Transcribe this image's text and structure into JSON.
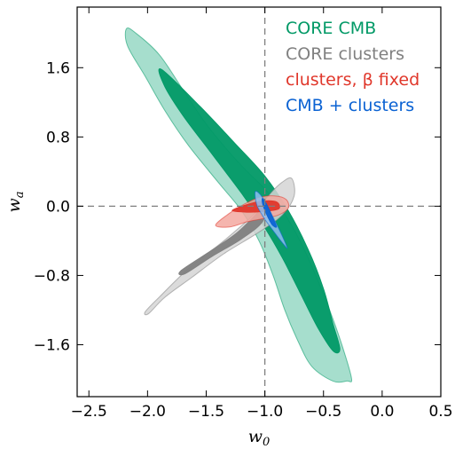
{
  "chart_data": {
    "type": "contour",
    "xlabel": "w",
    "xlabel_sub": "0",
    "ylabel": "w",
    "ylabel_sub": "a",
    "xlim": [
      -2.6,
      0.5
    ],
    "ylim": [
      -2.2,
      2.3
    ],
    "xticks": [
      -2.5,
      -2.0,
      -1.5,
      -1.0,
      -0.5,
      0.0,
      0.5
    ],
    "xtick_labels": [
      "−2.5",
      "−2.0",
      "−1.5",
      "−1.0",
      "−0.5",
      "0.0",
      "0.5"
    ],
    "yticks": [
      1.6,
      0.8,
      0.0,
      -0.8,
      -1.6
    ],
    "ytick_labels": [
      "1.6",
      "0.8",
      "0.0",
      "−0.8",
      "−1.6"
    ],
    "reference_lines": {
      "x": -1.0,
      "y": 0.0
    },
    "legend_position": "top-right",
    "series": [
      {
        "name": "CORE CMB",
        "color": "#019966",
        "outer_color": "#97d8c4",
        "contour_95": [
          [
            -2.18,
            2.05
          ],
          [
            -2.1,
            2.0
          ],
          [
            -1.9,
            1.75
          ],
          [
            -1.7,
            1.35
          ],
          [
            -1.5,
            0.95
          ],
          [
            -1.3,
            0.62
          ],
          [
            -1.15,
            0.4
          ],
          [
            -1.0,
            0.2
          ],
          [
            -0.85,
            -0.05
          ],
          [
            -0.7,
            -0.4
          ],
          [
            -0.55,
            -0.85
          ],
          [
            -0.42,
            -1.3
          ],
          [
            -0.32,
            -1.7
          ],
          [
            -0.26,
            -2.0
          ],
          [
            -0.3,
            -2.02
          ],
          [
            -0.42,
            -2.02
          ],
          [
            -0.6,
            -1.85
          ],
          [
            -0.72,
            -1.55
          ],
          [
            -0.83,
            -1.2
          ],
          [
            -0.93,
            -0.8
          ],
          [
            -1.05,
            -0.4
          ],
          [
            -1.2,
            -0.05
          ],
          [
            -1.4,
            0.28
          ],
          [
            -1.65,
            0.7
          ],
          [
            -1.85,
            1.1
          ],
          [
            -2.02,
            1.5
          ],
          [
            -2.17,
            1.85
          ]
        ],
        "contour_68": [
          [
            -1.88,
            1.58
          ],
          [
            -1.55,
            1.15
          ],
          [
            -1.25,
            0.72
          ],
          [
            -1.0,
            0.35
          ],
          [
            -0.8,
            -0.05
          ],
          [
            -0.63,
            -0.5
          ],
          [
            -0.5,
            -0.95
          ],
          [
            -0.42,
            -1.35
          ],
          [
            -0.36,
            -1.65
          ],
          [
            -0.42,
            -1.67
          ],
          [
            -0.55,
            -1.4
          ],
          [
            -0.7,
            -1.0
          ],
          [
            -0.85,
            -0.6
          ],
          [
            -1.0,
            -0.25
          ],
          [
            -1.2,
            0.15
          ],
          [
            -1.45,
            0.6
          ],
          [
            -1.7,
            1.05
          ],
          [
            -1.86,
            1.4
          ]
        ]
      },
      {
        "name": "CORE clusters",
        "color": "#808080",
        "outer_color": "#d5d5d5",
        "contour_95": [
          [
            -2.02,
            -1.22
          ],
          [
            -1.9,
            -1.05
          ],
          [
            -1.65,
            -0.72
          ],
          [
            -1.35,
            -0.4
          ],
          [
            -1.1,
            -0.1
          ],
          [
            -0.95,
            0.15
          ],
          [
            -0.85,
            0.28
          ],
          [
            -0.77,
            0.32
          ],
          [
            -0.75,
            0.12
          ],
          [
            -0.85,
            -0.1
          ],
          [
            -1.05,
            -0.3
          ],
          [
            -1.35,
            -0.55
          ],
          [
            -1.62,
            -0.82
          ],
          [
            -1.85,
            -1.05
          ],
          [
            -1.99,
            -1.24
          ]
        ],
        "contour_68": [
          [
            -1.72,
            -0.75
          ],
          [
            -1.5,
            -0.55
          ],
          [
            -1.25,
            -0.32
          ],
          [
            -1.08,
            -0.1
          ],
          [
            -0.98,
            0.05
          ],
          [
            -1.02,
            -0.18
          ],
          [
            -1.2,
            -0.38
          ],
          [
            -1.45,
            -0.58
          ],
          [
            -1.68,
            -0.78
          ]
        ]
      },
      {
        "name": "clusters, β fixed",
        "color": "#e0372b",
        "outer_color": "#f3a8a0",
        "contour_95": [
          [
            -1.42,
            -0.22
          ],
          [
            -1.3,
            -0.08
          ],
          [
            -1.18,
            0.02
          ],
          [
            -1.05,
            0.1
          ],
          [
            -0.92,
            0.12
          ],
          [
            -0.82,
            0.08
          ],
          [
            -0.8,
            -0.02
          ],
          [
            -0.88,
            -0.1
          ],
          [
            -1.0,
            -0.14
          ],
          [
            -1.15,
            -0.18
          ],
          [
            -1.3,
            -0.24
          ]
        ],
        "contour_68": [
          [
            -1.28,
            -0.05
          ],
          [
            -1.15,
            0.02
          ],
          [
            -1.02,
            0.06
          ],
          [
            -0.9,
            0.05
          ],
          [
            -0.88,
            -0.03
          ],
          [
            -1.0,
            -0.06
          ],
          [
            -1.15,
            -0.07
          ]
        ]
      },
      {
        "name": "CMB + clusters",
        "color": "#0a62d3",
        "outer_color": "#8ebff0",
        "contour_95": [
          [
            -1.08,
            0.17
          ],
          [
            -1.02,
            0.1
          ],
          [
            -0.94,
            -0.1
          ],
          [
            -0.86,
            -0.32
          ],
          [
            -0.81,
            -0.48
          ],
          [
            -0.84,
            -0.44
          ],
          [
            -0.92,
            -0.3
          ],
          [
            -1.01,
            -0.13
          ],
          [
            -1.07,
            0.02
          ]
        ],
        "contour_68": [
          [
            -1.02,
            0.09
          ],
          [
            -0.98,
            0.01
          ],
          [
            -0.93,
            -0.14
          ],
          [
            -0.9,
            -0.24
          ],
          [
            -0.94,
            -0.21
          ],
          [
            -0.99,
            -0.08
          ],
          [
            -1.02,
            0.03
          ]
        ]
      }
    ]
  }
}
